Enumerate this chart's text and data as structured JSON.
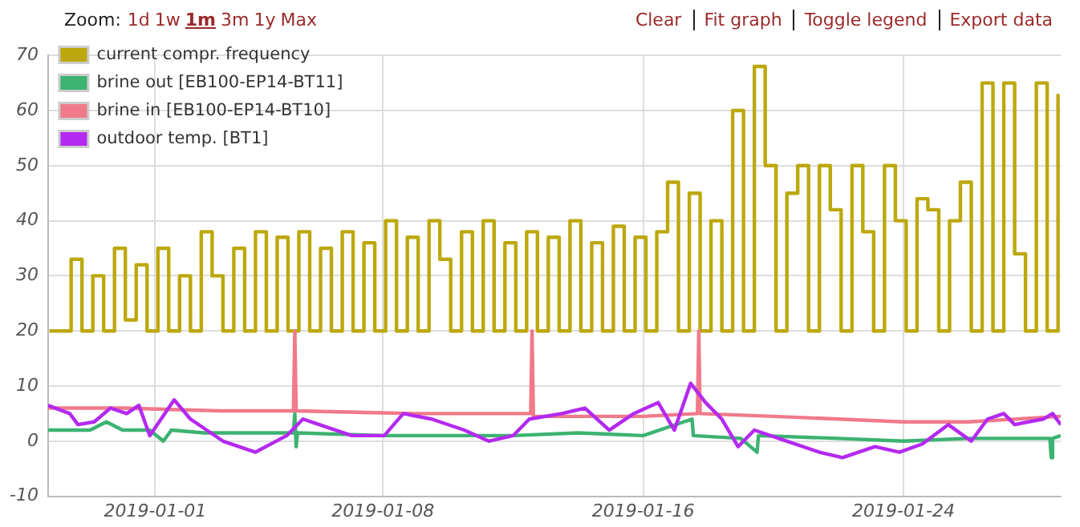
{
  "chart_data": {
    "type": "line",
    "annotations": [
      "Zoom:",
      "1d",
      "1w",
      "1m",
      "3m",
      "1y",
      "Max",
      "Clear",
      "Fit graph",
      "Toggle legend",
      "Export data"
    ],
    "xlim": [
      "2018-12-28T17:00",
      "2019-01-28T20:00"
    ],
    "xticks": [
      "2019-01-01",
      "2019-01-08",
      "2019-01-16",
      "2019-01-24"
    ],
    "ylim": [
      -10,
      70
    ],
    "yticks": [
      -10,
      0,
      10,
      20,
      30,
      40,
      50,
      60,
      70
    ],
    "grid": true,
    "legend": "top left",
    "marker": "none",
    "line_style": "solid",
    "series": [
      {
        "name": "current compr. frequency",
        "type": "step",
        "color": "#bca80c",
        "x": [
          "2018-12-28T18:00",
          "2018-12-29T02:00",
          "2018-12-29T10:00",
          "2018-12-29T18:00",
          "2018-12-30T02:00",
          "2018-12-30T10:00",
          "2018-12-30T18:00",
          "2018-12-31T02:00",
          "2018-12-31T10:00",
          "2018-12-31T18:00",
          "2019-01-01T02:00",
          "2019-01-01T10:00",
          "2019-01-01T18:00",
          "2019-01-02T02:00",
          "2019-01-02T10:00",
          "2019-01-02T18:00",
          "2019-01-03T02:00",
          "2019-01-03T10:00",
          "2019-01-03T18:00",
          "2019-01-04T02:00",
          "2019-01-04T10:00",
          "2019-01-04T18:00",
          "2019-01-05T02:00",
          "2019-01-05T10:00",
          "2019-01-05T18:00",
          "2019-01-06T02:00",
          "2019-01-06T10:00",
          "2019-01-06T18:00",
          "2019-01-07T02:00",
          "2019-01-07T10:00",
          "2019-01-07T18:00",
          "2019-01-08T02:00",
          "2019-01-08T10:00",
          "2019-01-08T18:00",
          "2019-01-09T02:00",
          "2019-01-09T10:00",
          "2019-01-09T18:00",
          "2019-01-10T02:00",
          "2019-01-10T10:00",
          "2019-01-10T18:00",
          "2019-01-11T02:00",
          "2019-01-11T10:00",
          "2019-01-11T18:00",
          "2019-01-12T02:00",
          "2019-01-12T10:00",
          "2019-01-12T18:00",
          "2019-01-13T02:00",
          "2019-01-13T10:00",
          "2019-01-13T18:00",
          "2019-01-14T02:00",
          "2019-01-14T10:00",
          "2019-01-14T18:00",
          "2019-01-15T02:00",
          "2019-01-15T10:00",
          "2019-01-15T18:00",
          "2019-01-16T02:00",
          "2019-01-16T10:00",
          "2019-01-16T18:00",
          "2019-01-17T02:00",
          "2019-01-17T10:00",
          "2019-01-17T18:00",
          "2019-01-18T02:00",
          "2019-01-18T10:00",
          "2019-01-18T18:00",
          "2019-01-19T02:00",
          "2019-01-19T10:00",
          "2019-01-19T18:00",
          "2019-01-20T02:00",
          "2019-01-20T10:00",
          "2019-01-20T18:00",
          "2019-01-21T02:00",
          "2019-01-21T10:00",
          "2019-01-21T18:00",
          "2019-01-22T02:00",
          "2019-01-22T10:00",
          "2019-01-22T18:00",
          "2019-01-23T02:00",
          "2019-01-23T10:00",
          "2019-01-23T18:00",
          "2019-01-24T02:00",
          "2019-01-24T10:00",
          "2019-01-24T18:00",
          "2019-01-25T02:00",
          "2019-01-25T10:00",
          "2019-01-25T18:00",
          "2019-01-26T02:00",
          "2019-01-26T10:00",
          "2019-01-26T18:00",
          "2019-01-27T02:00",
          "2019-01-27T10:00",
          "2019-01-27T18:00",
          "2019-01-28T02:00",
          "2019-01-28T10:00",
          "2019-01-28T18:00"
        ],
        "values": [
          20,
          20,
          33,
          20,
          30,
          20,
          35,
          22,
          32,
          20,
          35,
          20,
          30,
          20,
          38,
          30,
          20,
          35,
          20,
          38,
          20,
          37,
          20,
          38,
          20,
          35,
          20,
          38,
          20,
          36,
          20,
          40,
          20,
          37,
          20,
          40,
          33,
          20,
          38,
          20,
          40,
          20,
          36,
          20,
          38,
          20,
          37,
          20,
          40,
          20,
          36,
          20,
          39,
          20,
          37,
          20,
          38,
          47,
          20,
          45,
          20,
          40,
          20,
          60,
          20,
          68,
          50,
          20,
          45,
          50,
          20,
          50,
          42,
          20,
          50,
          38,
          20,
          50,
          40,
          20,
          44,
          42,
          20,
          40,
          47,
          20,
          65,
          20,
          65,
          34,
          20,
          65,
          20,
          63
        ]
      },
      {
        "name": "brine out [EB100-EP14-BT11]",
        "color": "#3cb371",
        "x": [
          "2018-12-28T17:00",
          "2018-12-30T00:00",
          "2018-12-30T12:00",
          "2018-12-31T00:00",
          "2018-12-31T20:00",
          "2019-01-01T06:00",
          "2019-01-01T12:00",
          "2019-01-02T12:00",
          "2019-01-04T00:00",
          "2019-01-05T06:00",
          "2019-01-05T07:00",
          "2019-01-05T08:00",
          "2019-01-05T09:00",
          "2019-01-08T00:00",
          "2019-01-10T00:00",
          "2019-01-12T00:00",
          "2019-01-14T00:00",
          "2019-01-16T00:00",
          "2019-01-17T12:00",
          "2019-01-17T13:00",
          "2019-01-19T00:00",
          "2019-01-19T12:00",
          "2019-01-19T13:00",
          "2019-01-22T00:00",
          "2019-01-24T00:00",
          "2019-01-26T00:00",
          "2019-01-28T12:00",
          "2019-01-28T13:00",
          "2019-01-28T14:00",
          "2019-01-28T20:00"
        ],
        "values": [
          2,
          2,
          3.5,
          2,
          2,
          0,
          2,
          1.5,
          1.5,
          1.5,
          5,
          -1,
          1.5,
          1,
          1,
          1,
          1.5,
          1,
          4,
          1,
          0.5,
          -2,
          1,
          0.5,
          0,
          0.5,
          0.5,
          -3,
          0.5,
          1
        ]
      },
      {
        "name": "brine in [EB100-EP14-BT10]",
        "color": "#f07a8a",
        "x": [
          "2018-12-28T17:00",
          "2018-12-31T00:00",
          "2019-01-03T00:00",
          "2019-01-05T06:00",
          "2019-01-05T07:00",
          "2019-01-05T08:00",
          "2019-01-09T00:00",
          "2019-01-12T13:00",
          "2019-01-12T14:00",
          "2019-01-12T15:00",
          "2019-01-16T00:00",
          "2019-01-17T16:00",
          "2019-01-17T17:00",
          "2019-01-17T18:00",
          "2019-01-20T00:00",
          "2019-01-24T00:00",
          "2019-01-26T00:00",
          "2019-01-28T20:00"
        ],
        "values": [
          6,
          6,
          5.5,
          5.5,
          20,
          5.5,
          5,
          5,
          20,
          4.5,
          4.5,
          5,
          20,
          5,
          4.5,
          3.5,
          3.5,
          4.5
        ]
      },
      {
        "name": "outdoor temp. [BT1]",
        "color": "#b429f0",
        "x": [
          "2018-12-28T17:00",
          "2018-12-29T09:00",
          "2018-12-29T15:00",
          "2018-12-30T03:00",
          "2018-12-30T15:00",
          "2018-12-31T03:00",
          "2018-12-31T12:00",
          "2018-12-31T20:00",
          "2019-01-01T14:00",
          "2019-01-02T02:00",
          "2019-01-03T02:00",
          "2019-01-04T02:00",
          "2019-01-05T01:00",
          "2019-01-05T13:00",
          "2019-01-06T01:00",
          "2019-01-07T01:00",
          "2019-01-08T01:00",
          "2019-01-08T15:00",
          "2019-01-09T12:00",
          "2019-01-10T12:00",
          "2019-01-11T06:00",
          "2019-01-12T00:00",
          "2019-01-12T12:00",
          "2019-01-13T12:00",
          "2019-01-14T05:00",
          "2019-01-14T23:00",
          "2019-01-15T17:00",
          "2019-01-16T11:00",
          "2019-01-16T23:00",
          "2019-01-17T11:00",
          "2019-01-17T22:00",
          "2019-01-18T10:00",
          "2019-01-18T22:00",
          "2019-01-19T10:00",
          "2019-01-20T10:00",
          "2019-01-21T10:00",
          "2019-01-22T03:00",
          "2019-01-23T03:00",
          "2019-01-23T21:00",
          "2019-01-24T14:00",
          "2019-01-25T09:00",
          "2019-01-26T02:00",
          "2019-01-26T14:00",
          "2019-01-27T02:00",
          "2019-01-27T10:00",
          "2019-01-28T07:00",
          "2019-01-28T14:00",
          "2019-01-28T20:00"
        ],
        "values": [
          6.5,
          5,
          3,
          3.5,
          6,
          5,
          6.5,
          1,
          7.5,
          4,
          0,
          -2,
          1,
          4,
          3,
          1,
          1,
          5,
          4,
          2,
          0,
          1,
          4,
          5,
          6,
          2,
          5,
          7,
          2,
          10.5,
          7,
          4,
          -1,
          2,
          0,
          -2,
          -3,
          -1,
          -2,
          -0.5,
          3,
          0,
          4,
          5,
          3,
          4,
          5,
          3
        ]
      }
    ]
  }
}
